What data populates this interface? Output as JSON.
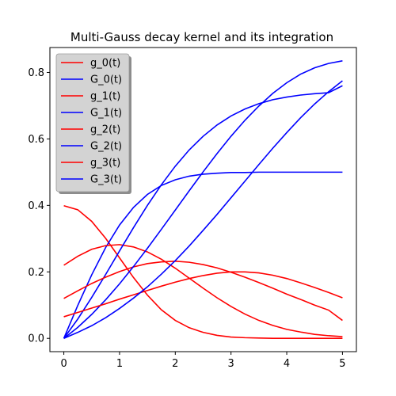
{
  "chart_data": {
    "type": "line",
    "title": "Multi-Gauss decay kernel and its integration",
    "xlabel": "",
    "ylabel": "",
    "xlim": [
      -0.25,
      5.25
    ],
    "ylim": [
      -0.04,
      0.875
    ],
    "xticks": [
      0,
      1,
      2,
      3,
      4,
      5
    ],
    "xtick_labels": [
      "0",
      "1",
      "2",
      "3",
      "4",
      "5"
    ],
    "yticks": [
      0.0,
      0.2,
      0.4,
      0.6,
      0.8
    ],
    "ytick_labels": [
      "0.0",
      "0.2",
      "0.4",
      "0.6",
      "0.8"
    ],
    "grid": false,
    "legend_placement": "top-left",
    "colors": {
      "g": "#ff0000",
      "G": "#0000ff"
    },
    "x": [
      0,
      0.25,
      0.5,
      0.75,
      1,
      1.25,
      1.5,
      1.75,
      2,
      2.25,
      2.5,
      2.75,
      3,
      3.25,
      3.5,
      3.75,
      4,
      4.25,
      4.5,
      4.75,
      5
    ],
    "series": [
      {
        "name": "g_0(t)",
        "color": "#ff0000",
        "values": [
          0.399,
          0.387,
          0.352,
          0.301,
          0.242,
          0.183,
          0.13,
          0.086,
          0.054,
          0.032,
          0.018,
          0.009,
          0.004,
          0.002,
          0.001,
          0.0,
          0.0,
          0.0,
          0.0,
          0.0,
          0.0
        ]
      },
      {
        "name": "G_0(t)",
        "color": "#0000ff",
        "values": [
          0.0,
          0.099,
          0.191,
          0.273,
          0.341,
          0.394,
          0.433,
          0.46,
          0.477,
          0.488,
          0.494,
          0.497,
          0.499,
          0.499,
          0.5,
          0.5,
          0.5,
          0.5,
          0.5,
          0.5,
          0.5
        ]
      },
      {
        "name": "g_1(t)",
        "color": "#ff0000",
        "values": [
          0.22,
          0.247,
          0.268,
          0.279,
          0.282,
          0.275,
          0.26,
          0.238,
          0.211,
          0.181,
          0.151,
          0.122,
          0.096,
          0.073,
          0.054,
          0.039,
          0.027,
          0.019,
          0.012,
          0.008,
          0.005
        ]
      },
      {
        "name": "G_1(t)",
        "color": "#0000ff",
        "values": [
          0.0,
          0.058,
          0.123,
          0.192,
          0.263,
          0.333,
          0.4,
          0.462,
          0.518,
          0.567,
          0.608,
          0.642,
          0.669,
          0.69,
          0.706,
          0.718,
          0.726,
          0.732,
          0.736,
          0.739,
          0.76
        ]
      },
      {
        "name": "g_2(t)",
        "color": "#ff0000",
        "values": [
          0.12,
          0.143,
          0.165,
          0.184,
          0.201,
          0.215,
          0.225,
          0.23,
          0.232,
          0.229,
          0.222,
          0.212,
          0.199,
          0.184,
          0.168,
          0.151,
          0.133,
          0.117,
          0.1,
          0.085,
          0.054
        ]
      },
      {
        "name": "G_2(t)",
        "color": "#0000ff",
        "values": [
          0.0,
          0.033,
          0.072,
          0.116,
          0.164,
          0.216,
          0.271,
          0.328,
          0.386,
          0.444,
          0.501,
          0.556,
          0.608,
          0.656,
          0.699,
          0.737,
          0.769,
          0.795,
          0.814,
          0.827,
          0.835
        ]
      },
      {
        "name": "g_3(t)",
        "color": "#ff0000",
        "values": [
          0.065,
          0.078,
          0.091,
          0.104,
          0.118,
          0.131,
          0.144,
          0.157,
          0.169,
          0.18,
          0.189,
          0.196,
          0.2,
          0.2,
          0.197,
          0.19,
          0.18,
          0.167,
          0.153,
          0.138,
          0.122
        ]
      },
      {
        "name": "G_3(t)",
        "color": "#0000ff",
        "values": [
          0.0,
          0.018,
          0.038,
          0.062,
          0.09,
          0.121,
          0.155,
          0.193,
          0.234,
          0.278,
          0.325,
          0.373,
          0.423,
          0.473,
          0.523,
          0.572,
          0.619,
          0.664,
          0.705,
          0.742,
          0.775
        ]
      }
    ]
  }
}
